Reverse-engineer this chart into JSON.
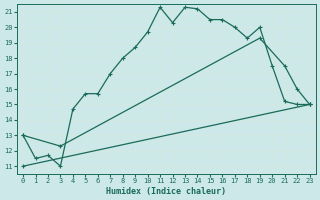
{
  "xlabel": "Humidex (Indice chaleur)",
  "bg_color": "#cce8e8",
  "grid_color": "#d4e8e0",
  "line_color": "#1a6b5a",
  "xlim": [
    -0.5,
    23.5
  ],
  "ylim": [
    10.5,
    21.5
  ],
  "yticks": [
    11,
    12,
    13,
    14,
    15,
    16,
    17,
    18,
    19,
    20,
    21
  ],
  "xticks": [
    0,
    1,
    2,
    3,
    4,
    5,
    6,
    7,
    8,
    9,
    10,
    11,
    12,
    13,
    14,
    15,
    16,
    17,
    18,
    19,
    20,
    21,
    22,
    23
  ],
  "line1": [
    [
      0,
      13.0
    ],
    [
      1,
      11.5
    ],
    [
      2,
      11.7
    ],
    [
      3,
      11.0
    ],
    [
      4,
      14.7
    ],
    [
      5,
      15.7
    ],
    [
      6,
      15.7
    ],
    [
      7,
      17.0
    ],
    [
      8,
      18.0
    ],
    [
      9,
      18.7
    ],
    [
      10,
      19.7
    ],
    [
      11,
      21.3
    ],
    [
      12,
      20.3
    ],
    [
      13,
      21.3
    ],
    [
      14,
      21.2
    ],
    [
      15,
      20.5
    ],
    [
      16,
      20.5
    ],
    [
      17,
      20.0
    ],
    [
      18,
      19.3
    ],
    [
      19,
      20.0
    ],
    [
      20,
      17.5
    ],
    [
      21,
      15.2
    ],
    [
      22,
      15.0
    ],
    [
      23,
      15.0
    ]
  ],
  "line2": [
    [
      0,
      13.0
    ],
    [
      3,
      12.3
    ],
    [
      19,
      19.3
    ],
    [
      21,
      17.5
    ],
    [
      22,
      16.0
    ],
    [
      23,
      15.0
    ]
  ],
  "line3": [
    [
      0,
      11.0
    ],
    [
      23,
      15.0
    ]
  ]
}
